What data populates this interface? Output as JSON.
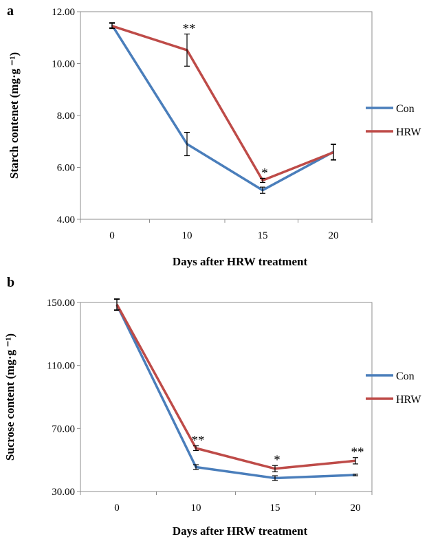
{
  "chart_data": [
    {
      "panel_label": "a",
      "type": "line",
      "categories": [
        "0",
        "10",
        "15",
        "20"
      ],
      "ylabel": "Starch contenet  (mg·g ⁻¹)",
      "xlabel": "Days after HRW treatment",
      "ylim": [
        4,
        12
      ],
      "yticks": [
        "4.00",
        "6.00",
        "8.00",
        "10.00",
        "12.00"
      ],
      "ytick_values": [
        4,
        6,
        8,
        10,
        12
      ],
      "series": [
        {
          "name": "Con",
          "color": "#4a7ebb",
          "values": [
            11.48,
            6.9,
            5.12,
            6.6
          ],
          "errors": [
            0.1,
            0.45,
            0.12,
            0.3
          ]
        },
        {
          "name": "HRW",
          "color": "#be4b48",
          "values": [
            11.45,
            10.52,
            5.5,
            6.58
          ],
          "errors": [
            0.1,
            0.62,
            0.08,
            0.3
          ]
        }
      ],
      "annotations": [
        {
          "category_index": 1,
          "text": "**",
          "above_value": 11.14
        },
        {
          "category_index": 2,
          "text": "*",
          "above_value": 5.58
        }
      ],
      "legend_position": "right"
    },
    {
      "panel_label": "b",
      "type": "line",
      "categories": [
        "0",
        "10",
        "15",
        "20"
      ],
      "ylabel": "Sucrose content  (mg·g ⁻¹)",
      "xlabel": "Days after HRW treatment",
      "ylim": [
        30,
        150
      ],
      "yticks": [
        "30.00",
        "70.00",
        "110.00",
        "150.00"
      ],
      "ytick_values": [
        30,
        70,
        110,
        150
      ],
      "series": [
        {
          "name": "Con",
          "color": "#4a7ebb",
          "values": [
            148.5,
            45.5,
            38.5,
            40.5
          ],
          "errors": [
            3.5,
            1.5,
            1.5,
            0.5
          ]
        },
        {
          "name": "HRW",
          "color": "#be4b48",
          "values": [
            148.8,
            57.5,
            44.5,
            49.5
          ],
          "errors": [
            3.5,
            1.5,
            2.0,
            2.0
          ]
        }
      ],
      "annotations": [
        {
          "category_index": 1,
          "text": "**",
          "above_value": 59.0
        },
        {
          "category_index": 2,
          "text": "*",
          "above_value": 46.5
        },
        {
          "category_index": 3,
          "text": "**",
          "above_value": 51.5
        }
      ],
      "legend_position": "right"
    }
  ]
}
